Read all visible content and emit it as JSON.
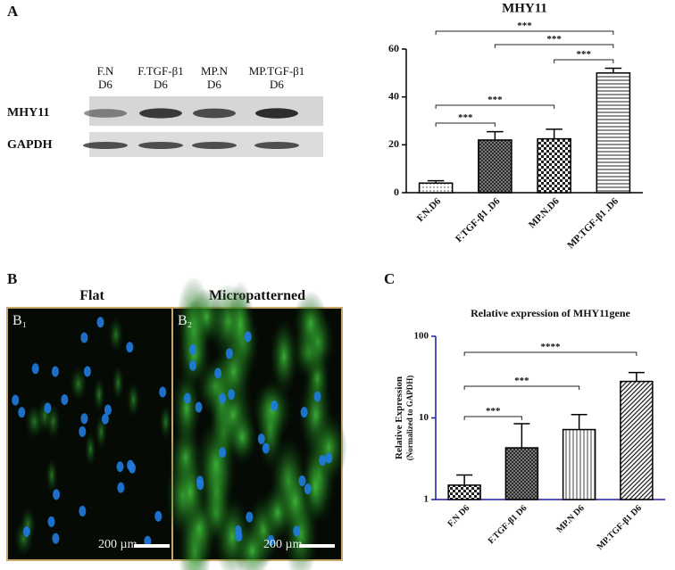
{
  "panels": {
    "a": "A",
    "b": "B",
    "c": "C"
  },
  "blot": {
    "lanes": [
      [
        "F.N",
        "D6"
      ],
      [
        "F.TGF-β1",
        "D6"
      ],
      [
        "MP.N",
        "D6"
      ],
      [
        "MP.TGF-β1",
        "D6"
      ]
    ],
    "rows": [
      "MHY11",
      "GAPDH"
    ]
  },
  "micrographs": {
    "titles": [
      "Flat",
      "Micropatterned"
    ],
    "tags": [
      "B₁",
      "B₂"
    ],
    "scale": "200 µm"
  },
  "chart_data": [
    {
      "type": "bar",
      "title": "MHY11",
      "categories": [
        "F.N.D6",
        "F.TGF-β1 .D6",
        "MP.N.D6",
        "MP.TGF-β1 .D6"
      ],
      "values": [
        4,
        22,
        22.5,
        50
      ],
      "errors": [
        1,
        3.5,
        4,
        2
      ],
      "color": "#000000",
      "axis_color": "#000000",
      "ylim": [
        0,
        60
      ],
      "yticks": [
        0,
        20,
        40,
        60
      ],
      "log_scale": false,
      "annotations": [
        "***",
        "***",
        "***",
        "***",
        "***"
      ]
    },
    {
      "type": "bar",
      "title": "Relative expression of MHY11gene",
      "y_label": [
        "Relative Expression",
        "(Normalized to GAPDH)"
      ],
      "categories": [
        "F.N D6",
        "F.TGF-β1 D6",
        "MP.N D6",
        "MP.TGF-β1 D6"
      ],
      "values": [
        1.5,
        4.3,
        7.2,
        28
      ],
      "errors": [
        0.5,
        4.2,
        3.8,
        8
      ],
      "color": "#000000",
      "axis_color": "#1a1aa8",
      "ylim": [
        1,
        100
      ],
      "yticks": [
        1,
        10,
        100
      ],
      "log_scale": true,
      "annotations": [
        "****",
        "***",
        "***"
      ]
    }
  ]
}
